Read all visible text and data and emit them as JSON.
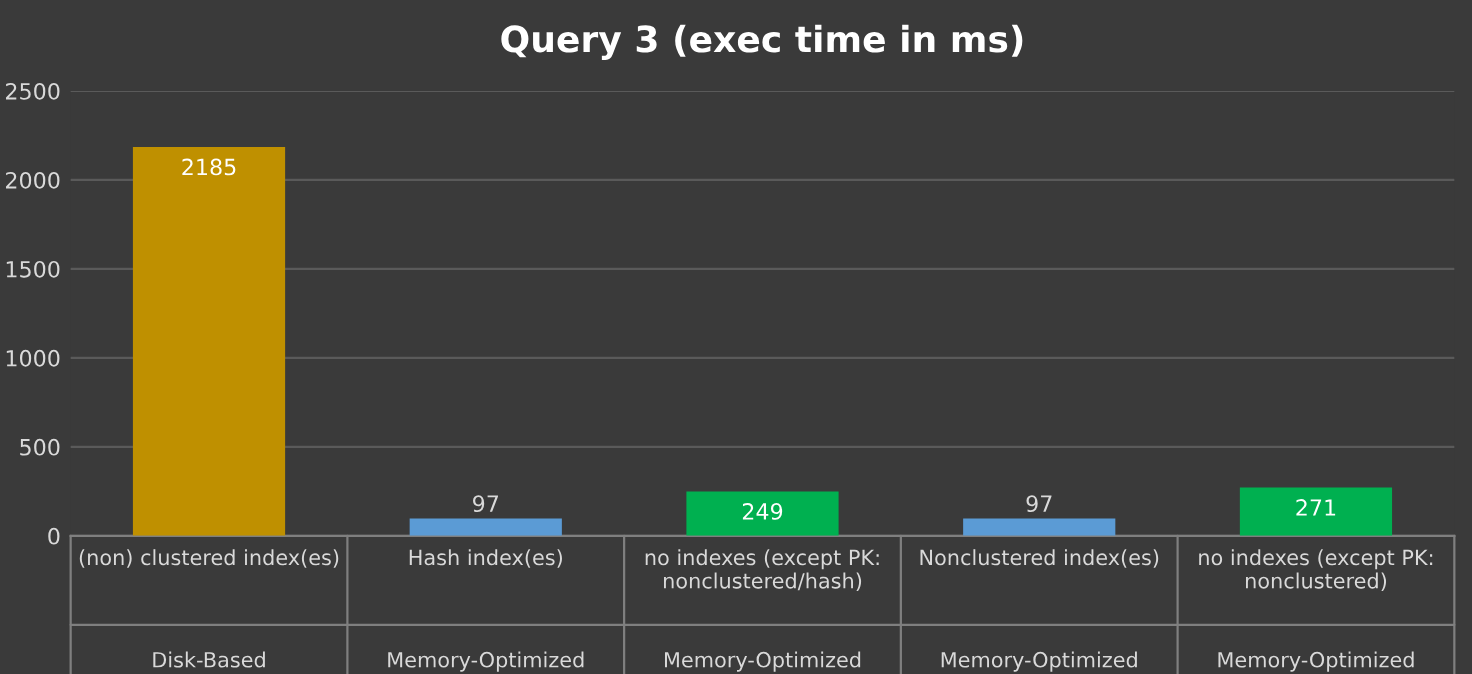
{
  "chart_data": {
    "type": "bar",
    "title": "Query 3 (exec time in ms)",
    "categories": [
      "(non) clustered index(es)\nDisk-Based",
      "Hash index(es)\nMemory-Optimized",
      "no indexes (except PK:\nnonclustered/hash)\nMemory-Optimized",
      "Nonclustered index(es)\nMemory-Optimized",
      "no indexes (except PK:\nnonclustered)\nMemory-Optimized"
    ],
    "values": [
      2185,
      97,
      249,
      97,
      271
    ],
    "colors": [
      "#bf9000",
      "#5b9bd5",
      "#00b050",
      "#5b9bd5",
      "#00b050"
    ],
    "ylim": [
      0,
      2500
    ],
    "yticks": [
      0,
      500,
      1000,
      1500,
      2000,
      2500
    ],
    "grid": "y",
    "data_labels": true
  }
}
